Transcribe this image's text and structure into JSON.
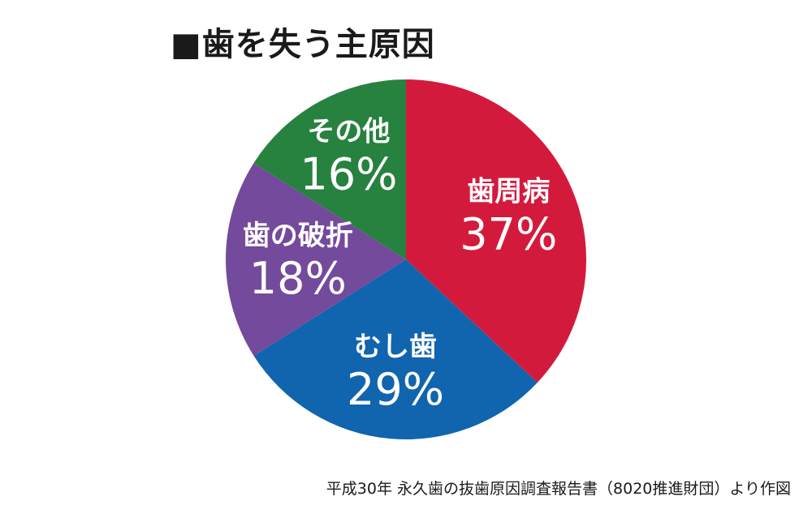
{
  "chart_data": {
    "type": "pie",
    "title": "■歯を失う主原因",
    "source": "平成30年 永久歯の抜歯原因調査報告書（8020推進財団）より作図",
    "slices": [
      {
        "label": "歯周病",
        "value": 37,
        "value_label": "37%",
        "color": "#d41a3c"
      },
      {
        "label": "むし歯",
        "value": 29,
        "value_label": "29%",
        "color": "#1164ae"
      },
      {
        "label": "歯の破折",
        "value": 18,
        "value_label": "18%",
        "color": "#744a9c"
      },
      {
        "label": "その他",
        "value": 16,
        "value_label": "16%",
        "color": "#27813f"
      }
    ]
  }
}
